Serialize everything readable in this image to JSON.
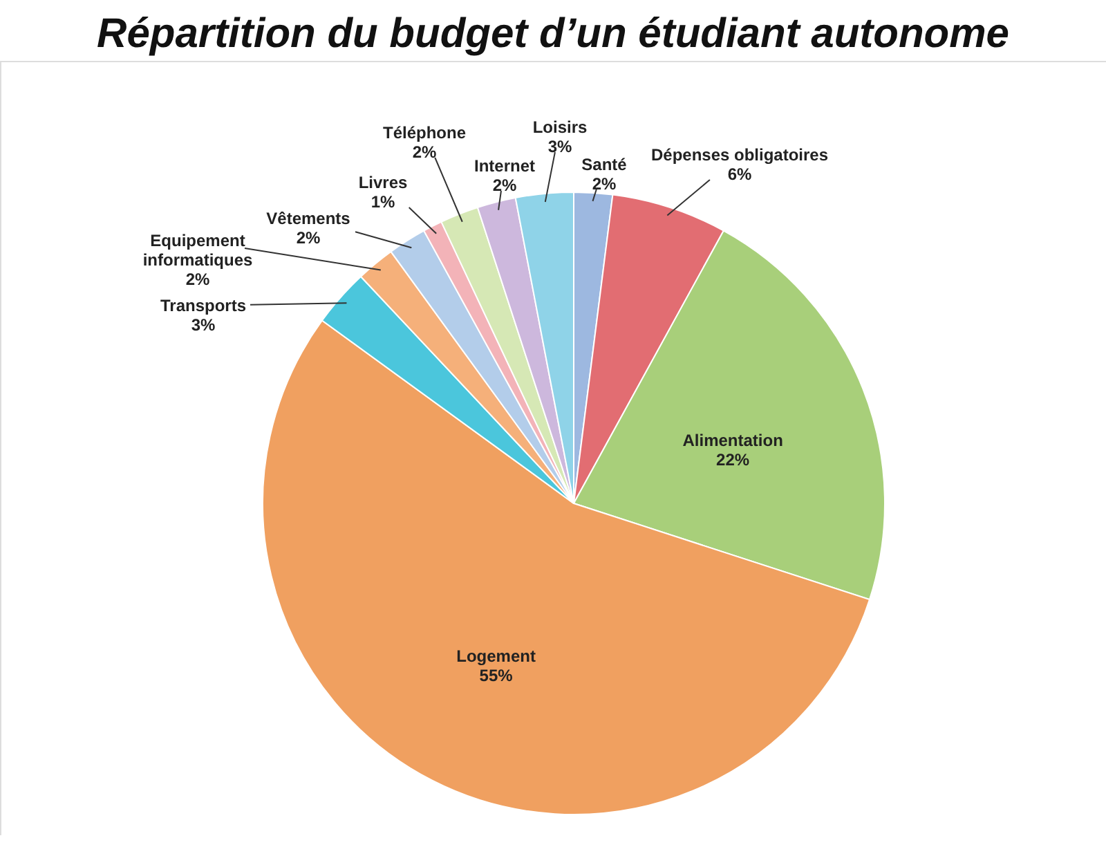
{
  "chart_data": {
    "type": "pie",
    "title": "Répartition du budget d’un étudiant autonome",
    "categories": [
      "Santé",
      "Dépenses obligatoires",
      "Alimentation",
      "Logement",
      "Transports",
      "Equipement informatiques",
      "Vêtements",
      "Livres",
      "Téléphone",
      "Internet",
      "Loisirs"
    ],
    "values": [
      2,
      6,
      22,
      55,
      3,
      2,
      2,
      1,
      2,
      2,
      3
    ],
    "value_labels": [
      "2%",
      "6%",
      "22%",
      "55%",
      "3%",
      "2%",
      "2%",
      "1%",
      "2%",
      "2%",
      "3%"
    ],
    "colors": [
      "#9db8e0",
      "#e26d72",
      "#a8cf7a",
      "#f0a060",
      "#4bc6dc",
      "#f5b07a",
      "#b3cdea",
      "#f3b3b8",
      "#d6e8b5",
      "#cdb8dd",
      "#8fd3e8"
    ],
    "legend": false
  }
}
